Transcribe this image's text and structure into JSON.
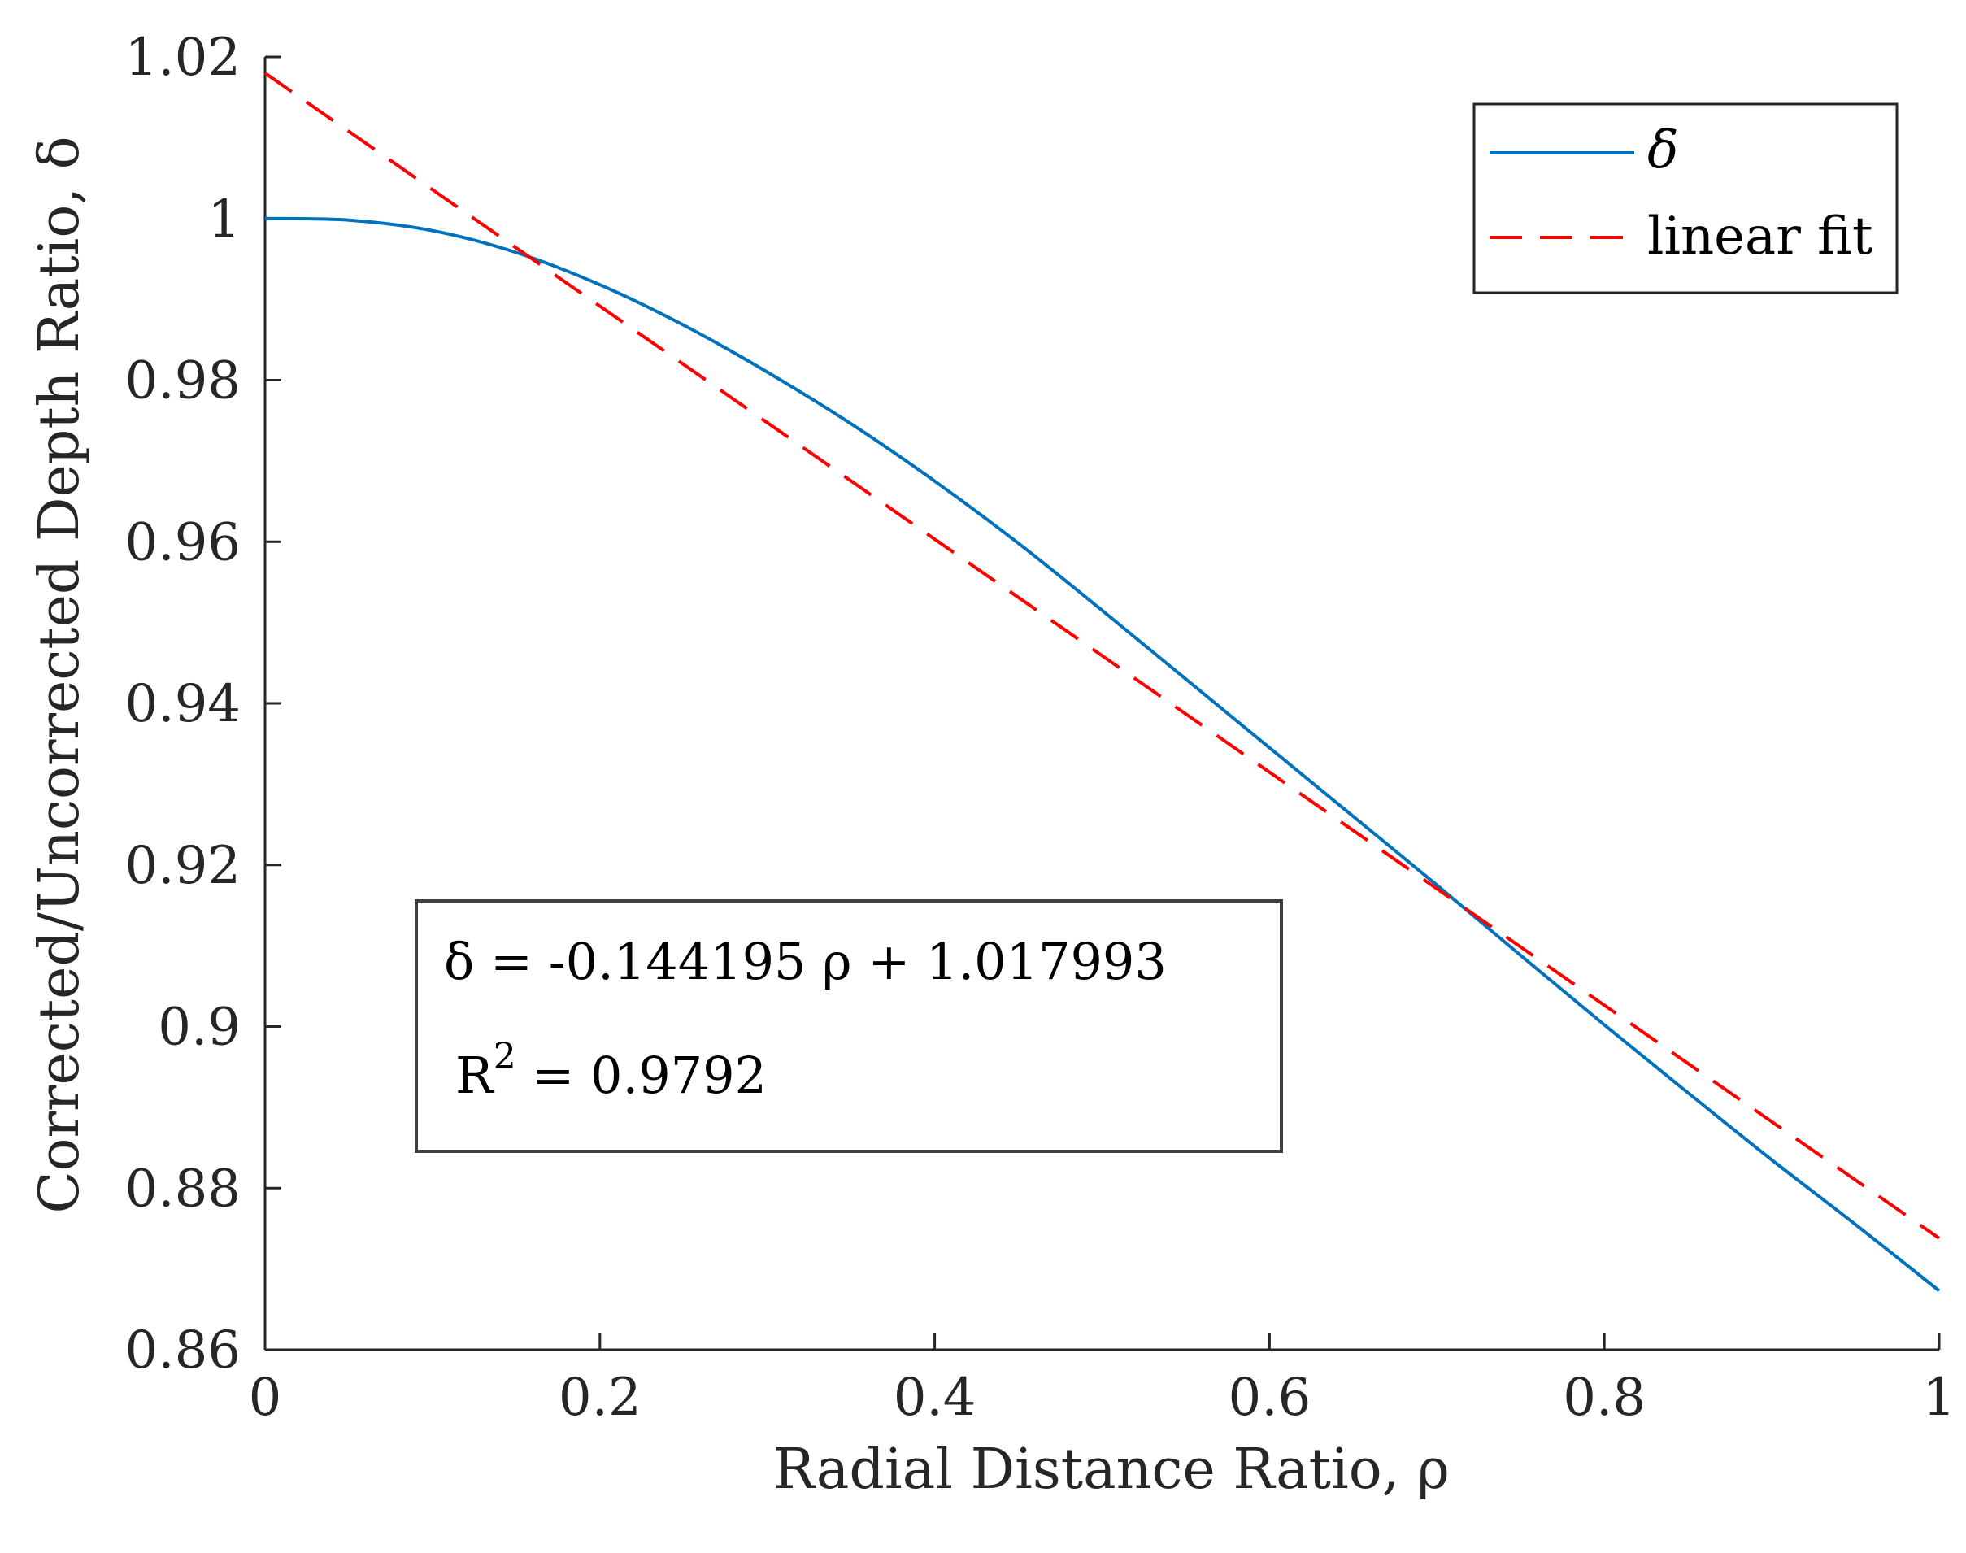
{
  "chart_data": {
    "type": "line",
    "title": "",
    "xlabel": "Radial Distance Ratio, ρ",
    "ylabel": "Corrected/Uncorrected Depth Ratio, δ",
    "xlim": [
      0,
      1
    ],
    "ylim": [
      0.86,
      1.02
    ],
    "xticks": [
      0,
      0.2,
      0.4,
      0.6,
      0.8,
      1
    ],
    "xtick_labels": [
      "0",
      "0.2",
      "0.4",
      "0.6",
      "0.8",
      "1"
    ],
    "yticks": [
      0.86,
      0.88,
      0.9,
      0.92,
      0.94,
      0.96,
      0.98,
      1,
      1.02
    ],
    "ytick_labels": [
      "0.86",
      "0.88",
      "0.9",
      "0.92",
      "0.94",
      "0.96",
      "0.98",
      "1",
      "1.02"
    ],
    "grid": false,
    "legend_position": "top-right",
    "series": [
      {
        "name": "δ",
        "style": "solid",
        "color": "#0072BD",
        "x": [
          0,
          0.05,
          0.1,
          0.15,
          0.2,
          0.25,
          0.3,
          0.35,
          0.4,
          0.45,
          0.5,
          0.55,
          0.6,
          0.65,
          0.7,
          0.75,
          0.8,
          0.85,
          0.9,
          0.95,
          1.0
        ],
        "y": [
          1.0,
          0.9998,
          0.9985,
          0.9958,
          0.9918,
          0.9868,
          0.981,
          0.9746,
          0.9675,
          0.9598,
          0.9515,
          0.943,
          0.9345,
          0.926,
          0.9175,
          0.9088,
          0.9002,
          0.8918,
          0.8835,
          0.8755,
          0.8673
        ]
      },
      {
        "name": "linear fit",
        "style": "dashed",
        "color": "#FF0000",
        "slope": -0.144195,
        "intercept": 1.017993
      }
    ],
    "annotation": {
      "equation": "δ = -0.144195 ρ + 1.017993",
      "r2_base": "R",
      "r2_exponent": "2",
      "r2_value": " = 0.9792"
    }
  }
}
